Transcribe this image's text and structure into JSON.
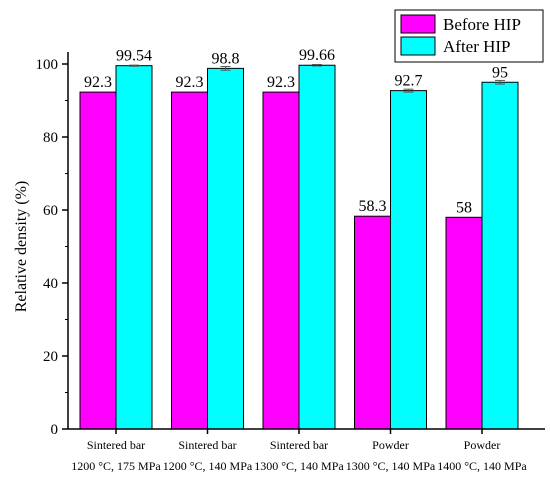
{
  "chart_data": {
    "type": "bar",
    "categories": [
      [
        "Sintered bar",
        "1200 °C, 175 MPa"
      ],
      [
        "Sintered bar",
        "1200 °C, 140 MPa"
      ],
      [
        "Sintered bar",
        "1300 °C, 140 MPa"
      ],
      [
        "Powder",
        "1300 °C, 140 MPa"
      ],
      [
        "Powder",
        "1400 °C, 140 MPa"
      ]
    ],
    "series": [
      {
        "name": "Before HIP",
        "values": [
          92.3,
          92.3,
          92.3,
          58.3,
          58
        ],
        "labels": [
          "92.3",
          "92.3",
          "92.3",
          "58.3",
          "58"
        ],
        "color": "#ff00ff"
      },
      {
        "name": "After HIP",
        "values": [
          99.54,
          98.8,
          99.66,
          92.7,
          95
        ],
        "labels": [
          "99.54",
          "98.8",
          "99.66",
          "92.7",
          "95"
        ],
        "errors": [
          0.15,
          0.5,
          0.2,
          0.4,
          0.5
        ],
        "color": "#00ffff"
      }
    ],
    "ylabel": "Relative density (%)",
    "xlabel": "",
    "ylim": [
      0,
      100
    ],
    "yticks": [
      0,
      20,
      40,
      60,
      80,
      100
    ],
    "grid": false,
    "legend": "top-right",
    "error_color": "#555555"
  }
}
